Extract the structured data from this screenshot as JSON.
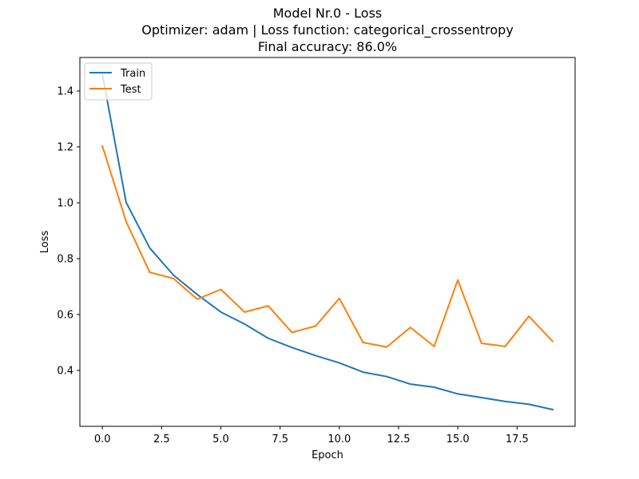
{
  "chart_data": {
    "type": "line",
    "title": [
      "Model Nr.0 - Loss",
      "Optimizer: adam | Loss function: categorical_crossentropy",
      "Final accuracy: 86.0%"
    ],
    "xlabel": "Epoch",
    "ylabel": "Loss",
    "xlim": [
      -0.95,
      19.95
    ],
    "ylim": [
      0.2,
      1.52
    ],
    "xticks": [
      0.0,
      2.5,
      5.0,
      7.5,
      10.0,
      12.5,
      15.0,
      17.5
    ],
    "xtick_labels": [
      "0.0",
      "2.5",
      "5.0",
      "7.5",
      "10.0",
      "12.5",
      "15.0",
      "17.5"
    ],
    "yticks": [
      0.4,
      0.6,
      0.8,
      1.0,
      1.2,
      1.4
    ],
    "ytick_labels": [
      "0.4",
      "0.6",
      "0.8",
      "1.0",
      "1.2",
      "1.4"
    ],
    "grid": false,
    "legend_position": "top-left",
    "x": [
      0,
      1,
      2,
      3,
      4,
      5,
      6,
      7,
      8,
      9,
      10,
      11,
      12,
      13,
      14,
      15,
      16,
      17,
      18,
      19
    ],
    "series": [
      {
        "name": "Train",
        "color": "#1f77b4",
        "values": [
          1.46,
          1.002,
          0.838,
          0.741,
          0.672,
          0.609,
          0.566,
          0.515,
          0.482,
          0.453,
          0.427,
          0.394,
          0.378,
          0.351,
          0.34,
          0.316,
          0.303,
          0.289,
          0.279,
          0.26
        ]
      },
      {
        "name": "Test",
        "color": "#ff7f0e",
        "values": [
          1.203,
          0.933,
          0.751,
          0.729,
          0.655,
          0.69,
          0.609,
          0.631,
          0.536,
          0.559,
          0.658,
          0.5,
          0.484,
          0.554,
          0.486,
          0.724,
          0.497,
          0.486,
          0.594,
          0.504
        ]
      }
    ]
  }
}
